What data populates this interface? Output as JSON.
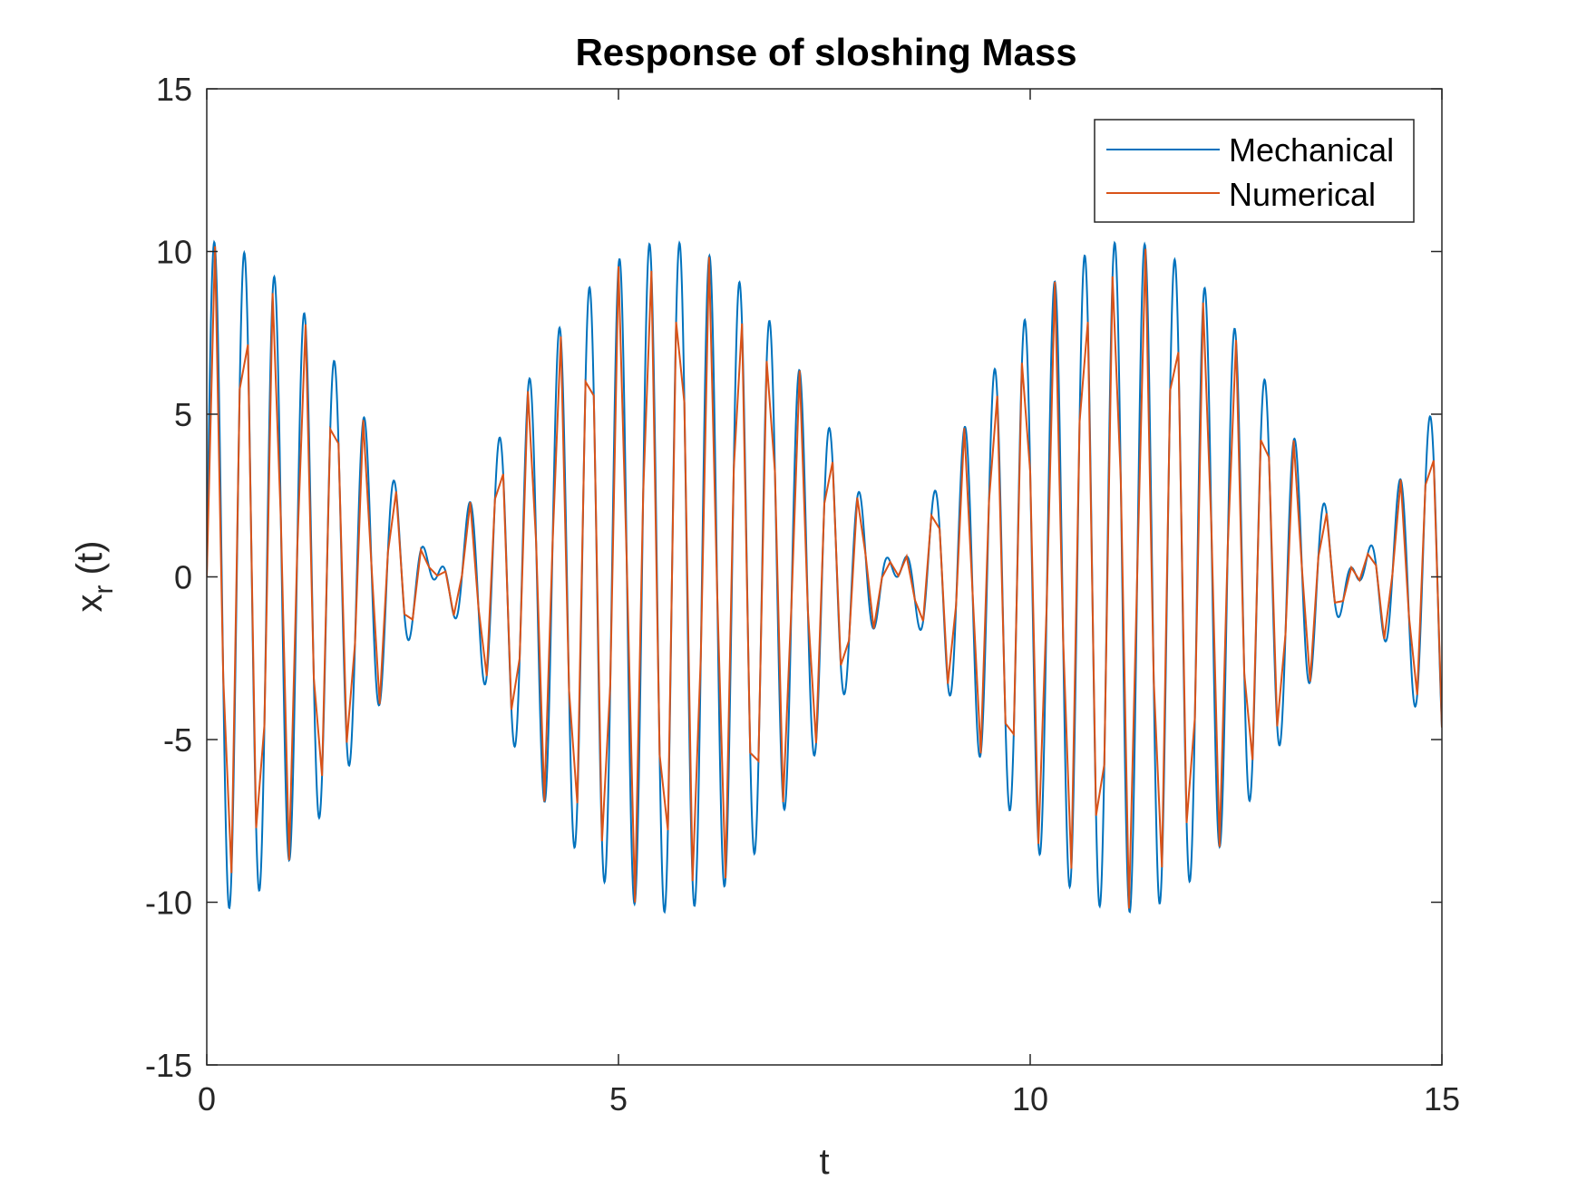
{
  "chart_data": {
    "type": "line",
    "title": "Response of sloshing Mass",
    "xlabel": "t",
    "ylabel_main": "x",
    "ylabel_subscript": "r",
    "ylabel_suffix": " (t)",
    "xlim": [
      0,
      15
    ],
    "ylim": [
      -15,
      15
    ],
    "x_ticks": [
      0,
      5,
      10,
      15
    ],
    "y_ticks": [
      -15,
      -10,
      -5,
      0,
      5,
      10,
      15
    ],
    "grid": false,
    "legend_position": "top-right",
    "series": [
      {
        "name": "Mechanical",
        "color": "#0072BD",
        "model": {
          "description": "beating sinusoid",
          "amplitude": 5.15,
          "freq_fast_hz": 2.833,
          "freq_slow_hz": 0.179,
          "x_start": 0,
          "x_end": 15
        }
      },
      {
        "name": "Numerical",
        "color": "#D95319",
        "sample_step": 0.1,
        "model": {
          "description": "same beating signal sampled coarsely",
          "amplitude": 5.15,
          "freq_fast_hz": 2.833,
          "freq_slow_hz": 0.179,
          "x_start": 0,
          "x_end": 15
        }
      }
    ]
  }
}
